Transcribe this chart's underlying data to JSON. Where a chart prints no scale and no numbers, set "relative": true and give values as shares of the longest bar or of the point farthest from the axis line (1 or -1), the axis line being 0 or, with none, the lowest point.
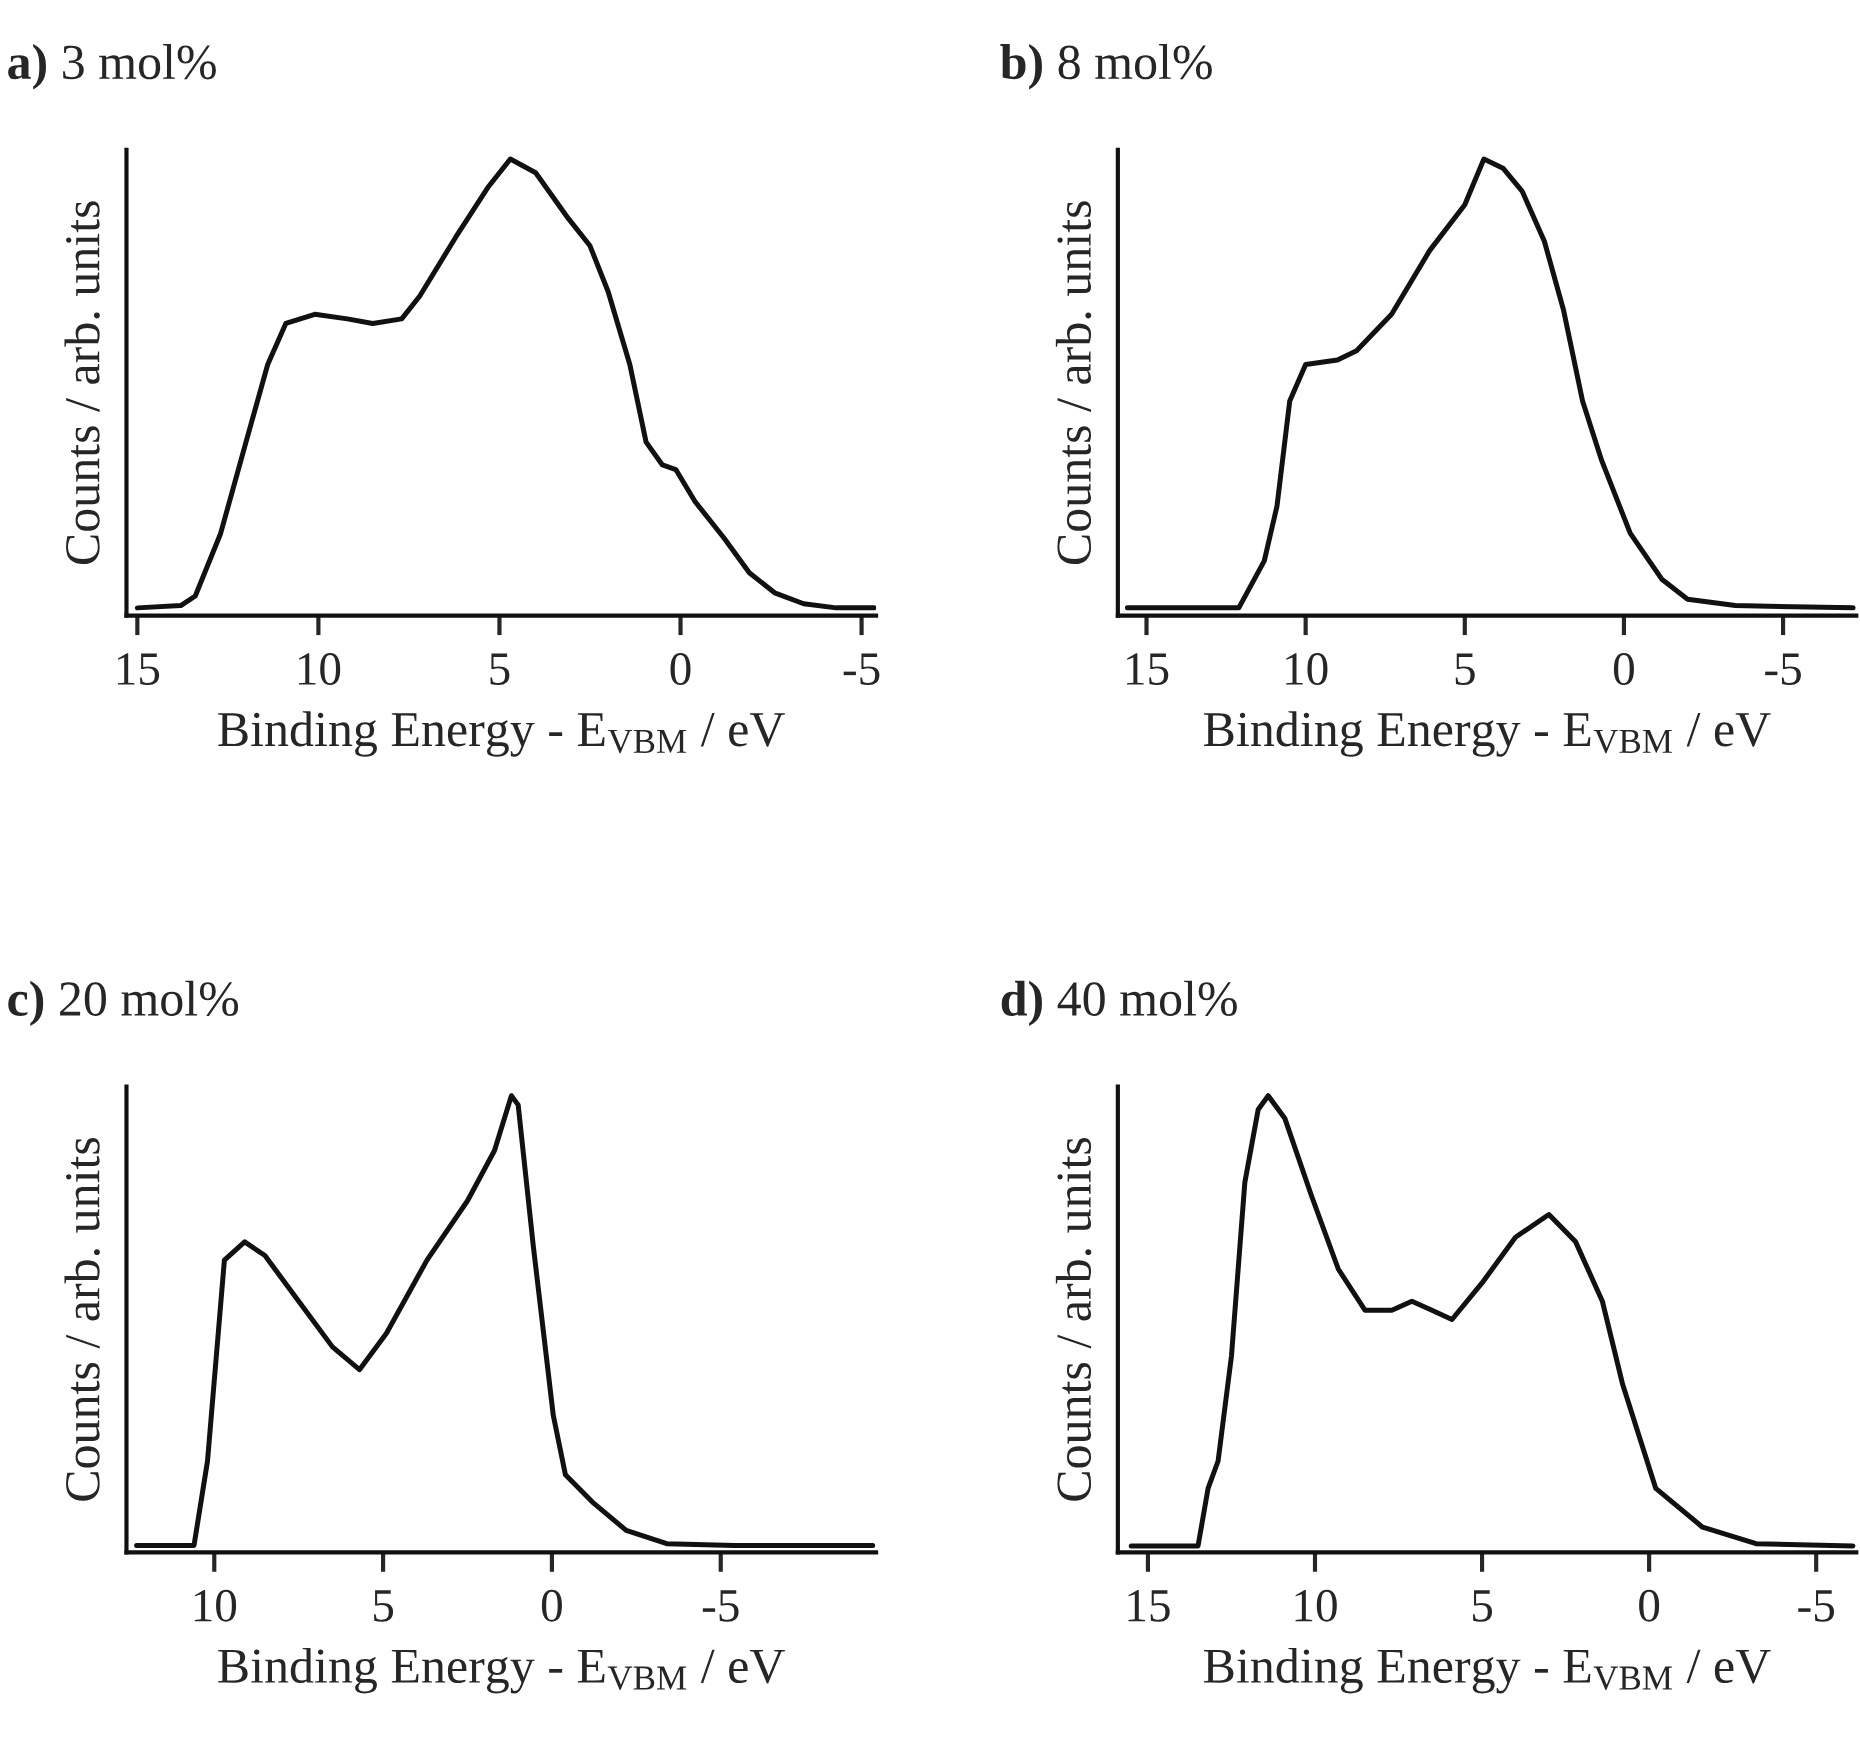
{
  "chart_data": [
    {
      "type": "line",
      "title": "a) 3 mol%",
      "xlabel": "Binding Energy - E$_{VBM}$ / eV",
      "ylabel": "Counts / arb. units",
      "relative": true,
      "xlim": [
        15.3,
        -5.4
      ],
      "xticks": [
        15,
        10,
        5,
        0,
        -5
      ],
      "grid": false,
      "legend": false,
      "series": [
        {
          "color": "#111111",
          "x": [
            15.0,
            13.8,
            13.4,
            12.7,
            12.0,
            11.4,
            10.9,
            10.1,
            9.2,
            8.5,
            7.7,
            7.2,
            6.2,
            5.3,
            4.7,
            4.0,
            3.1,
            2.5,
            2.0,
            1.4,
            0.95,
            0.5,
            0.13,
            -0.4,
            -1.2,
            -1.9,
            -2.6,
            -3.4,
            -4.3,
            -5.35
          ],
          "values": [
            0.017,
            0.022,
            0.043,
            0.18,
            0.38,
            0.55,
            0.64,
            0.66,
            0.65,
            0.64,
            0.65,
            0.7,
            0.83,
            0.94,
            1.0,
            0.97,
            0.87,
            0.81,
            0.71,
            0.55,
            0.38,
            0.33,
            0.32,
            0.25,
            0.17,
            0.094,
            0.05,
            0.026,
            0.017,
            0.017
          ]
        }
      ]
    },
    {
      "type": "line",
      "title": "b) 8 mol%",
      "xlabel": "Binding Energy - E$_{VBM}$ / eV",
      "ylabel": "Counts / arb. units",
      "relative": true,
      "xlim": [
        15.9,
        -7.3
      ],
      "xticks": [
        15,
        10,
        5,
        0,
        -5
      ],
      "grid": false,
      "legend": false,
      "series": [
        {
          "color": "#111111",
          "x": [
            15.6,
            12.1,
            11.3,
            10.9,
            10.5,
            10.0,
            9.0,
            8.4,
            7.3,
            6.1,
            5.0,
            4.4,
            3.8,
            3.2,
            2.5,
            1.9,
            1.3,
            0.7,
            -0.2,
            -1.2,
            -2.0,
            -3.5,
            -7.2
          ],
          "values": [
            0.017,
            0.017,
            0.12,
            0.24,
            0.47,
            0.55,
            0.56,
            0.58,
            0.66,
            0.8,
            0.9,
            1.0,
            0.98,
            0.93,
            0.82,
            0.67,
            0.47,
            0.34,
            0.18,
            0.079,
            0.036,
            0.022,
            0.017
          ]
        }
      ]
    },
    {
      "type": "line",
      "title": "c) 20 mol%",
      "xlabel": "Binding Energy - E$_{VBM}$ / eV",
      "ylabel": "Counts / arb. units",
      "relative": true,
      "xlim": [
        12.6,
        -9.6
      ],
      "xticks": [
        10,
        5,
        0,
        -5
      ],
      "grid": false,
      "legend": false,
      "series": [
        {
          "color": "#111111",
          "x": [
            12.3,
            10.6,
            10.2,
            9.7,
            9.1,
            8.5,
            7.5,
            6.5,
            5.7,
            4.9,
            3.7,
            2.5,
            1.7,
            1.2,
            1.0,
            0.55,
            -0.04,
            -0.4,
            -1.2,
            -2.2,
            -3.4,
            -5.4,
            -9.5
          ],
          "values": [
            0.015,
            0.015,
            0.2,
            0.64,
            0.68,
            0.65,
            0.55,
            0.45,
            0.4,
            0.48,
            0.64,
            0.77,
            0.88,
            1.0,
            0.98,
            0.67,
            0.3,
            0.17,
            0.11,
            0.048,
            0.019,
            0.015,
            0.015
          ]
        }
      ]
    },
    {
      "type": "line",
      "title": "d) 40 mol%",
      "xlabel": "Binding Energy - E$_{VBM}$ / eV",
      "ylabel": "Counts / arb. units",
      "relative": true,
      "xlim": [
        15.9,
        -6.2
      ],
      "xticks": [
        15,
        10,
        5,
        0,
        -5
      ],
      "grid": false,
      "legend": false,
      "series": [
        {
          "color": "#111111",
          "x": [
            15.5,
            13.5,
            13.2,
            12.9,
            12.5,
            12.1,
            11.7,
            11.4,
            10.9,
            10.1,
            9.3,
            8.5,
            7.7,
            7.1,
            6.5,
            5.9,
            5.0,
            4.0,
            3.0,
            2.2,
            1.4,
            0.8,
            -0.2,
            -1.6,
            -3.2,
            -6.1
          ],
          "values": [
            0.014,
            0.014,
            0.14,
            0.2,
            0.43,
            0.81,
            0.97,
            1.0,
            0.95,
            0.78,
            0.62,
            0.53,
            0.53,
            0.55,
            0.53,
            0.51,
            0.59,
            0.69,
            0.74,
            0.68,
            0.55,
            0.37,
            0.14,
            0.055,
            0.019,
            0.014
          ]
        }
      ]
    }
  ]
}
